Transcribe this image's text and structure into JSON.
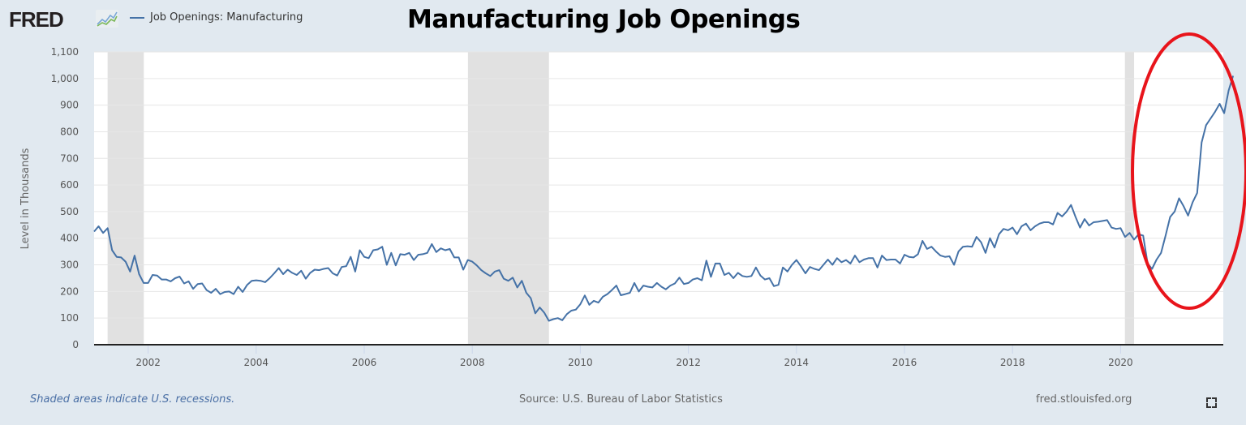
{
  "header": {
    "logo_text": "FRED",
    "logo_icon": "fred-graph-icon",
    "legend_label": "Job Openings: Manufacturing",
    "title": "Manufacturing Job Openings"
  },
  "footer": {
    "recession_note": "Shaded areas indicate U.S. recessions.",
    "source": "Source: U.S. Bureau of Labor Statistics",
    "site": "fred.stlouisfed.org",
    "fullscreen_icon": "fullscreen-icon"
  },
  "colors": {
    "background": "#e1e9f0",
    "plot_bg": "#ffffff",
    "series": "#4572a7",
    "recession": "#e1e1e1",
    "annotation": "#e8141b"
  },
  "chart_data": {
    "type": "line",
    "title": "Manufacturing Job Openings",
    "xlabel": "",
    "ylabel": "Level in Thousands",
    "ylim": [
      0,
      1100
    ],
    "yticks": [
      0,
      100,
      200,
      300,
      400,
      500,
      600,
      700,
      800,
      900,
      1000,
      1100
    ],
    "ytick_labels": [
      "0",
      "100",
      "200",
      "300",
      "400",
      "500",
      "600",
      "700",
      "800",
      "900",
      "1,000",
      "1,100"
    ],
    "xticks": [
      2002,
      2004,
      2006,
      2008,
      2010,
      2012,
      2014,
      2016,
      2018,
      2020
    ],
    "xtick_labels": [
      "2002",
      "2004",
      "2006",
      "2008",
      "2010",
      "2012",
      "2014",
      "2016",
      "2018",
      "2020"
    ],
    "xlim": [
      2001.0,
      2021.9
    ],
    "grid": true,
    "legend": {
      "position": "top-left",
      "entries": [
        "Job Openings: Manufacturing"
      ]
    },
    "recessions": [
      {
        "start": 2001.25,
        "end": 2001.92
      },
      {
        "start": 2007.92,
        "end": 2009.42
      },
      {
        "start": 2020.08,
        "end": 2020.25
      }
    ],
    "annotation": {
      "type": "ellipse",
      "color": "#e8141b",
      "description": "red ellipse highlighting 2020-2021 surge"
    },
    "series": [
      {
        "name": "Job Openings: Manufacturing",
        "start": "2001-01",
        "frequency": "monthly",
        "values": [
          425,
          445,
          420,
          438,
          355,
          330,
          328,
          312,
          275,
          335,
          265,
          232,
          232,
          262,
          260,
          245,
          245,
          238,
          250,
          256,
          230,
          238,
          210,
          228,
          230,
          205,
          195,
          210,
          190,
          198,
          200,
          190,
          218,
          198,
          225,
          240,
          242,
          240,
          235,
          250,
          268,
          288,
          265,
          282,
          270,
          262,
          278,
          248,
          270,
          282,
          280,
          285,
          288,
          268,
          260,
          292,
          295,
          330,
          275,
          355,
          330,
          325,
          355,
          358,
          368,
          300,
          345,
          298,
          340,
          338,
          345,
          318,
          338,
          340,
          345,
          378,
          348,
          362,
          355,
          360,
          328,
          328,
          282,
          318,
          312,
          298,
          280,
          268,
          258,
          275,
          280,
          248,
          240,
          252,
          215,
          240,
          195,
          175,
          118,
          140,
          120,
          90,
          96,
          100,
          92,
          115,
          128,
          132,
          152,
          185,
          150,
          165,
          158,
          180,
          190,
          205,
          222,
          186,
          190,
          195,
          232,
          200,
          222,
          218,
          215,
          232,
          218,
          208,
          222,
          230,
          252,
          228,
          232,
          245,
          250,
          242,
          316,
          255,
          305,
          305,
          262,
          270,
          250,
          270,
          258,
          255,
          258,
          290,
          260,
          245,
          250,
          220,
          225,
          290,
          275,
          300,
          318,
          295,
          268,
          292,
          285,
          280,
          300,
          320,
          300,
          325,
          310,
          318,
          305,
          335,
          310,
          320,
          325,
          325,
          290,
          335,
          318,
          320,
          320,
          305,
          338,
          330,
          328,
          340,
          390,
          360,
          368,
          350,
          335,
          330,
          332,
          300,
          350,
          368,
          370,
          368,
          405,
          385,
          345,
          400,
          365,
          415,
          435,
          430,
          440,
          415,
          445,
          455,
          430,
          445,
          455,
          460,
          460,
          452,
          495,
          482,
          500,
          525,
          480,
          440,
          472,
          448,
          460,
          462,
          465,
          468,
          440,
          435,
          438,
          405,
          420,
          395,
          415,
          410,
          305,
          285,
          320,
          345,
          410,
          480,
          500,
          550,
          520,
          485,
          535,
          570,
          760,
          825,
          850,
          875,
          905,
          870,
          955,
          1010
        ]
      }
    ]
  }
}
